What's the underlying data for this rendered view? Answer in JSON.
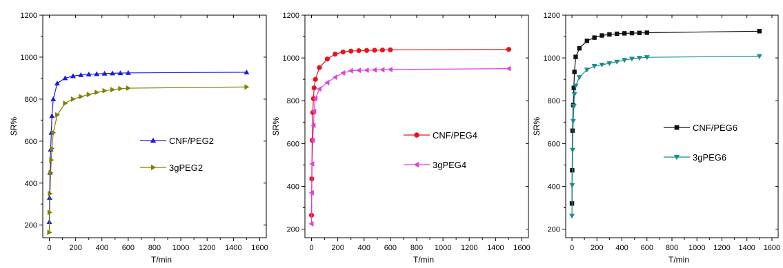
{
  "chart_data": [
    {
      "type": "line",
      "xlabel": "T/min",
      "ylabel": "SR%",
      "xlim": [
        -50,
        1650
      ],
      "ylim": [
        140,
        1200
      ],
      "xticks": [
        0,
        200,
        400,
        600,
        800,
        1000,
        1200,
        1400,
        1600
      ],
      "yticks": [
        200,
        400,
        600,
        800,
        1000,
        1200
      ],
      "grid": false,
      "legend_position": "right-middle",
      "series": [
        {
          "name": "CNF/PEG2",
          "color": "#1a1ae6",
          "marker": "triangle-up",
          "x": [
            0,
            2,
            5,
            10,
            15,
            20,
            30,
            60,
            120,
            180,
            240,
            300,
            360,
            420,
            480,
            540,
            600,
            1500
          ],
          "y": [
            215,
            330,
            450,
            560,
            640,
            720,
            800,
            875,
            900,
            910,
            915,
            918,
            920,
            922,
            923,
            924,
            925,
            928
          ]
        },
        {
          "name": "3gPEG2",
          "color": "#808000",
          "marker": "triangle-right",
          "x": [
            0,
            2,
            5,
            10,
            15,
            20,
            30,
            60,
            120,
            180,
            240,
            300,
            360,
            420,
            480,
            540,
            600,
            1500
          ],
          "y": [
            165,
            260,
            350,
            450,
            510,
            565,
            640,
            725,
            780,
            800,
            812,
            822,
            832,
            840,
            845,
            850,
            852,
            858
          ]
        }
      ]
    },
    {
      "type": "line",
      "xlabel": "T/min",
      "ylabel": "SR%",
      "xlim": [
        -50,
        1650
      ],
      "ylim": [
        160,
        1200
      ],
      "xticks": [
        0,
        200,
        400,
        600,
        800,
        1000,
        1200,
        1400,
        1600
      ],
      "yticks": [
        200,
        400,
        600,
        800,
        1000,
        1200
      ],
      "grid": false,
      "legend_position": "right-middle",
      "series": [
        {
          "name": "CNF/PEG4",
          "color": "#e6141e",
          "marker": "circle",
          "x": [
            0,
            2,
            5,
            10,
            15,
            20,
            30,
            60,
            120,
            180,
            240,
            300,
            360,
            420,
            480,
            540,
            600,
            1500
          ],
          "y": [
            265,
            435,
            615,
            745,
            810,
            860,
            900,
            955,
            995,
            1018,
            1028,
            1032,
            1034,
            1035,
            1036,
            1037,
            1038,
            1040
          ]
        },
        {
          "name": "3gPEG4",
          "color": "#e040e0",
          "marker": "triangle-left",
          "x": [
            0,
            2,
            5,
            10,
            15,
            20,
            30,
            60,
            120,
            180,
            240,
            300,
            360,
            420,
            480,
            540,
            600,
            1500
          ],
          "y": [
            225,
            370,
            505,
            615,
            685,
            750,
            810,
            855,
            885,
            910,
            930,
            940,
            942,
            943,
            944,
            945,
            946,
            950
          ]
        }
      ]
    },
    {
      "type": "line",
      "xlabel": "T/min",
      "ylabel": "SR%",
      "xlim": [
        -50,
        1650
      ],
      "ylim": [
        160,
        1200
      ],
      "xticks": [
        0,
        200,
        400,
        600,
        800,
        1000,
        1200,
        1400,
        1600
      ],
      "yticks": [
        200,
        400,
        600,
        800,
        1000,
        1200
      ],
      "grid": false,
      "legend_position": "right-middle",
      "series": [
        {
          "name": "CNF/PEG6",
          "color": "#111111",
          "marker": "square",
          "x": [
            0,
            2,
            5,
            10,
            15,
            20,
            30,
            60,
            120,
            180,
            240,
            300,
            360,
            420,
            480,
            540,
            600,
            1500
          ],
          "y": [
            320,
            475,
            660,
            780,
            860,
            935,
            1005,
            1045,
            1080,
            1095,
            1105,
            1110,
            1113,
            1115,
            1116,
            1117,
            1118,
            1125
          ]
        },
        {
          "name": "3gPEG6",
          "color": "#1a8c8c",
          "marker": "triangle-down",
          "x": [
            0,
            2,
            5,
            10,
            15,
            20,
            30,
            60,
            120,
            180,
            240,
            300,
            360,
            420,
            480,
            540,
            600,
            1500
          ],
          "y": [
            262,
            405,
            570,
            705,
            775,
            830,
            870,
            910,
            945,
            962,
            968,
            975,
            982,
            990,
            996,
            1000,
            1003,
            1008
          ]
        }
      ]
    }
  ]
}
